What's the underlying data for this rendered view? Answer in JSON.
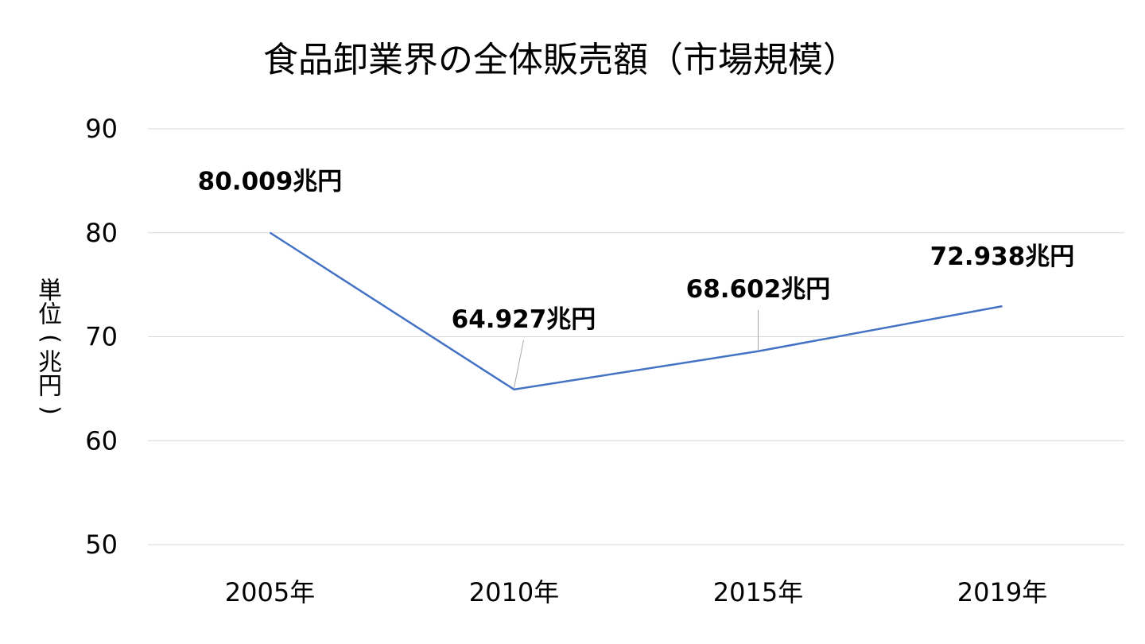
{
  "chart_data": {
    "type": "line",
    "title": "食品卸業界の全体販売額（市場規模）",
    "ylabel": "単位(兆円)",
    "xlabel": "",
    "categories": [
      "2005年",
      "2010年",
      "2015年",
      "2019年"
    ],
    "series": [
      {
        "values": [
          80.009,
          64.927,
          68.602,
          72.938
        ],
        "data_labels": [
          "80.009兆円",
          "64.927兆円",
          "68.602兆円",
          "72.938兆円"
        ],
        "color": "#4472C4"
      }
    ],
    "ylim": [
      50,
      90
    ],
    "yticks": [
      50,
      60,
      70,
      80,
      90
    ],
    "grid": true,
    "legend": "none",
    "colors": {
      "gridline": "#d9d9d9",
      "leader_line": "#a6a6a6",
      "text": "#000000"
    }
  }
}
